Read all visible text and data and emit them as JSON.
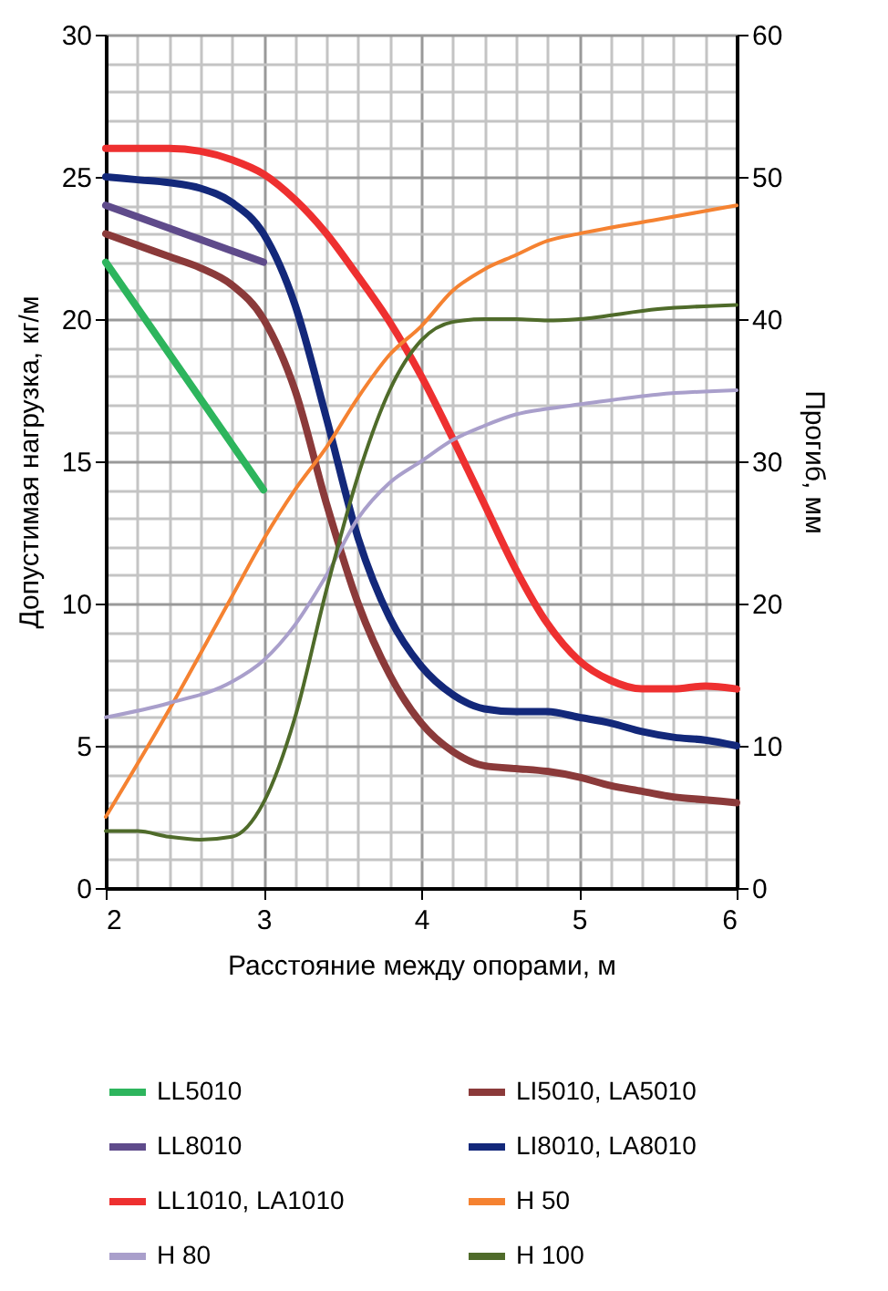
{
  "chart_data": {
    "type": "line",
    "xlabel": "Расстояние между опорами, м",
    "ylabel": "Допустимая нагрузка, кг/м",
    "y2label": "Прогиб, мм",
    "xlim": [
      2,
      6
    ],
    "xticks": [
      2,
      3,
      4,
      5,
      6
    ],
    "ylim": [
      0,
      30
    ],
    "yticks": [
      0,
      5,
      10,
      15,
      20,
      25,
      30
    ],
    "y2lim": [
      0,
      60
    ],
    "y2ticks": [
      0,
      10,
      20,
      30,
      40,
      50,
      60
    ],
    "grid": true,
    "legend": "bottom",
    "x": [
      2,
      2.2,
      2.4,
      2.6,
      2.8,
      3,
      3.2,
      3.4,
      3.6,
      3.8,
      4,
      4.2,
      4.4,
      4.6,
      4.8,
      5,
      5.2,
      5.4,
      5.6,
      5.8,
      6
    ],
    "series": [
      {
        "name": "LL5010",
        "color": "#2db55d",
        "x": [
          2,
          3
        ],
        "values": [
          22,
          14
        ]
      },
      {
        "name": "LI5010, LA5010",
        "color": "#8b3a3a",
        "values": [
          23,
          22.6,
          22.2,
          21.8,
          21.2,
          20,
          17.5,
          13.5,
          10,
          7.5,
          5.8,
          4.8,
          4.3,
          4.2,
          4.1,
          3.9,
          3.6,
          3.4,
          3.2,
          3.1,
          3
        ]
      },
      {
        "name": "LL8010",
        "color": "#5f4b8b",
        "x": [
          2,
          3
        ],
        "values": [
          24,
          22
        ]
      },
      {
        "name": "LI8010, LA8010",
        "color": "#13287a",
        "values": [
          25,
          24.9,
          24.8,
          24.6,
          24.1,
          23,
          20.5,
          16.5,
          12.3,
          9.5,
          7.8,
          6.8,
          6.3,
          6.2,
          6.2,
          6,
          5.8,
          5.5,
          5.3,
          5.2,
          5
        ]
      },
      {
        "name": "LL1010, LA1010",
        "color": "#ee3030",
        "values": [
          26,
          26,
          26,
          25.9,
          25.6,
          25.1,
          24.2,
          23,
          21.5,
          19.9,
          18,
          15.8,
          13.5,
          11.2,
          9.3,
          8,
          7.3,
          7,
          7,
          7.1,
          7
        ]
      },
      {
        "name": "H 50",
        "color": "#f58231",
        "axis": "y2",
        "x": [
          2,
          2.4,
          2.8,
          3,
          3.2,
          3.4,
          3.6,
          3.8,
          4,
          4.2,
          4.4,
          4.6,
          4.8,
          5,
          5.5,
          6
        ],
        "values": [
          5,
          12.5,
          20.5,
          24.5,
          28,
          31,
          34.5,
          37.5,
          39.5,
          42,
          43.5,
          44.5,
          45.5,
          46,
          47,
          48
        ]
      },
      {
        "name": "H 80",
        "color": "#a99fcb",
        "axis": "y2",
        "x": [
          2,
          2.4,
          2.8,
          3,
          3.2,
          3.4,
          3.6,
          3.8,
          4,
          4.2,
          4.4,
          4.6,
          4.8,
          5,
          5.5,
          6
        ],
        "values": [
          12,
          13,
          14.5,
          16,
          18.5,
          22,
          26,
          28.5,
          30,
          31.5,
          32.5,
          33.3,
          33.7,
          34,
          34.7,
          35
        ]
      },
      {
        "name": "H 100",
        "color": "#4f6b2a",
        "axis": "y2",
        "x": [
          2,
          2.2,
          2.4,
          2.6,
          2.8,
          3,
          3.2,
          3.4,
          3.6,
          3.8,
          4,
          4.2,
          4.4,
          4.6,
          4.8,
          5,
          5.5,
          6
        ],
        "values": [
          4,
          4,
          3.6,
          3.4,
          3.6,
          6,
          12,
          21,
          29,
          35,
          38.5,
          39.8,
          40,
          40,
          39.9,
          40,
          40.7,
          41
        ]
      }
    ]
  }
}
